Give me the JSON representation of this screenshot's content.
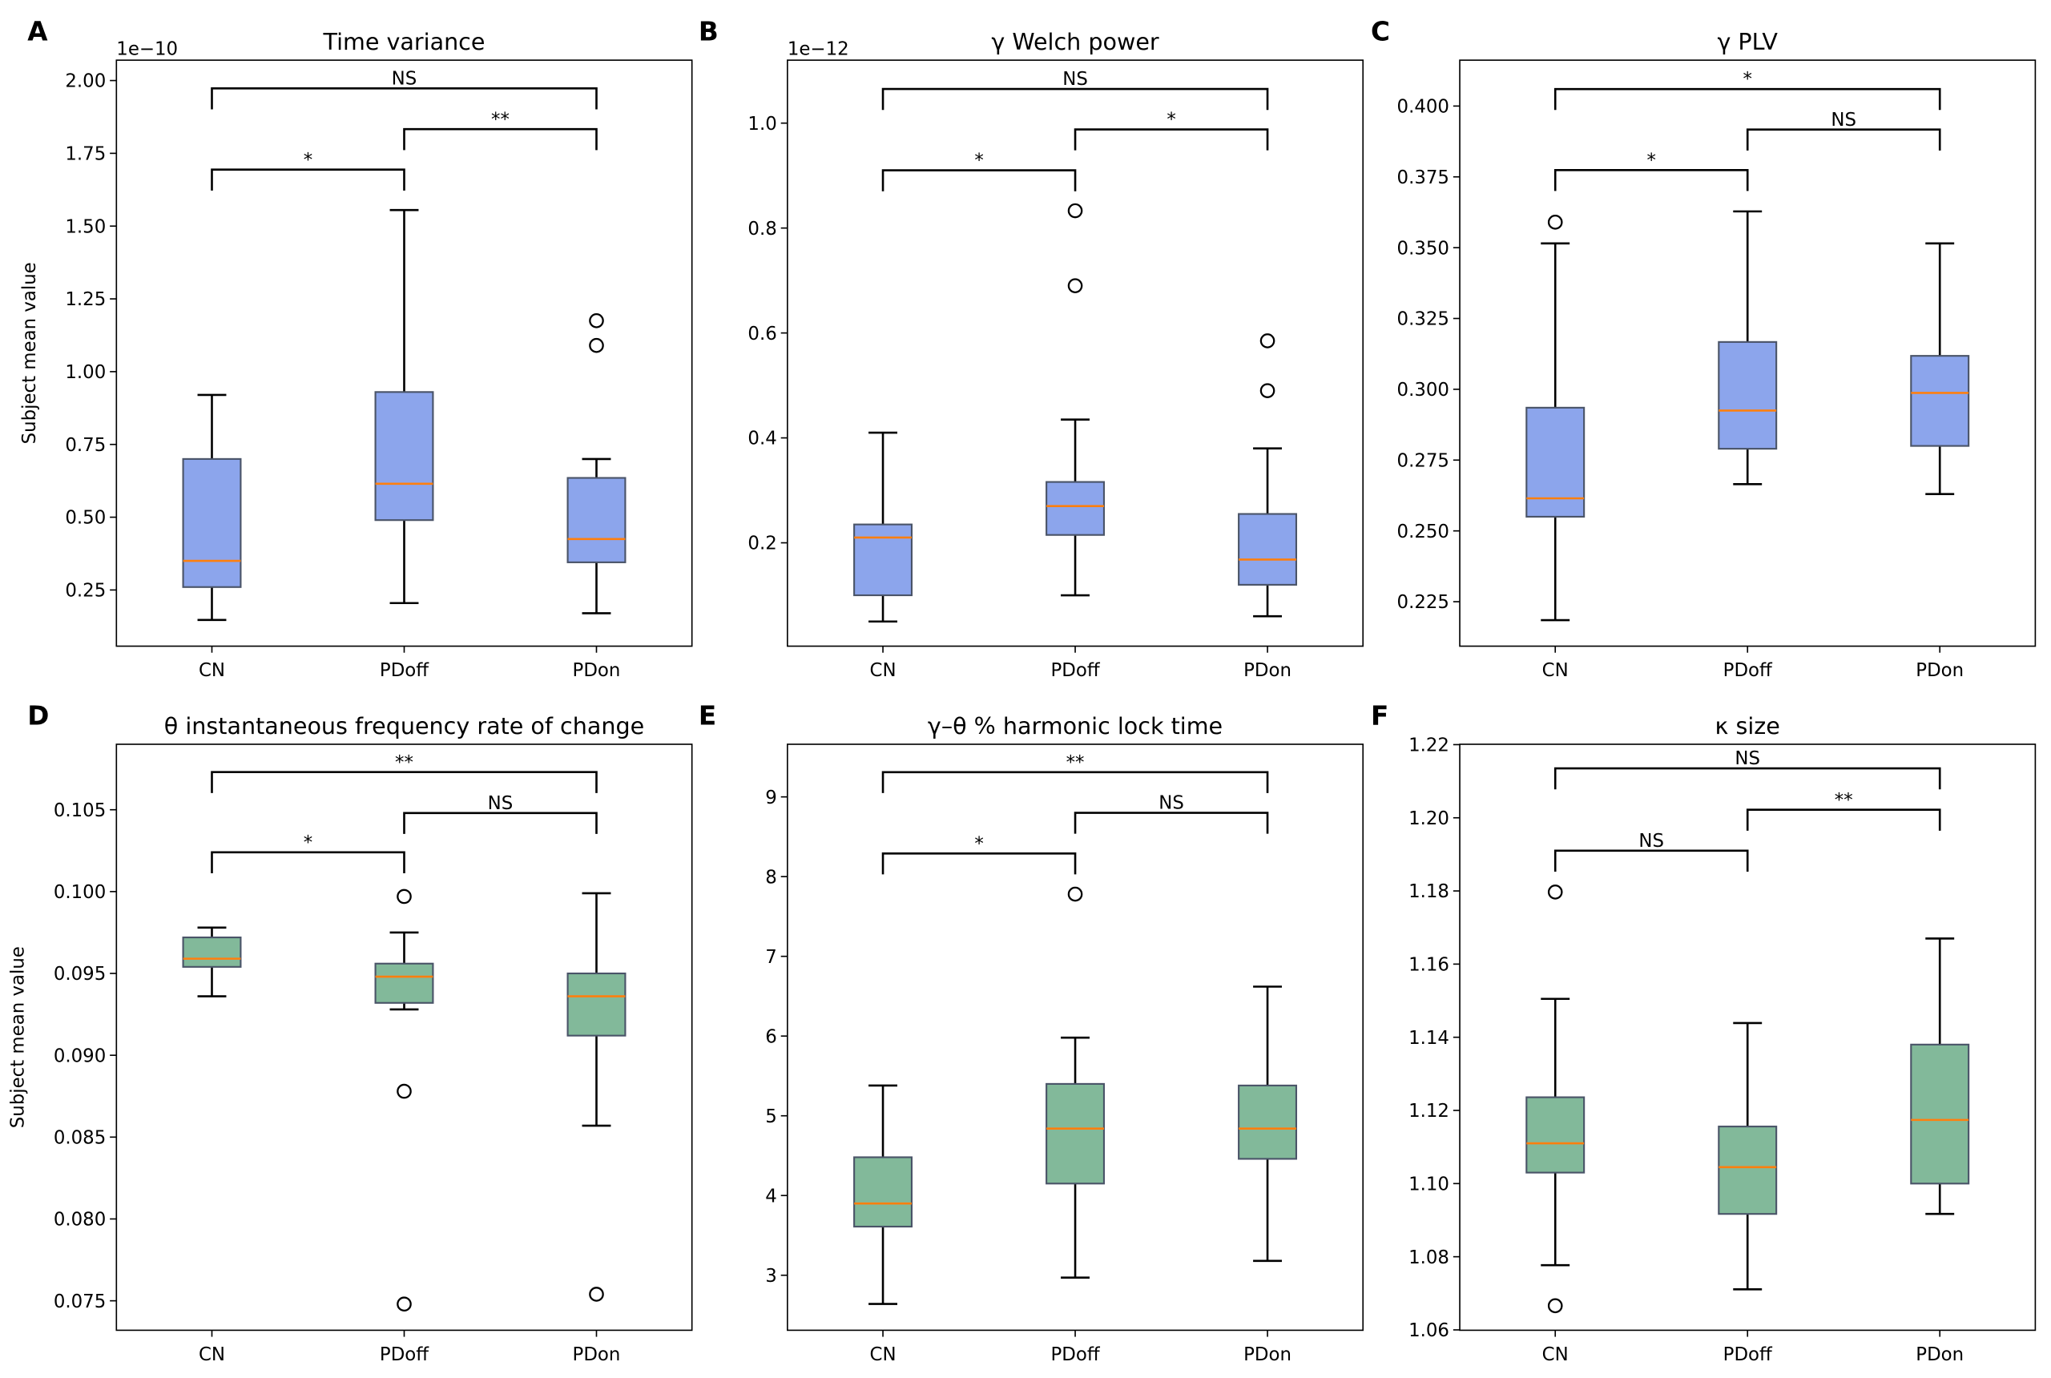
{
  "colors": {
    "group1_box": "#8ca5ec",
    "group2_box": "#82b99a",
    "median": "#ff7f0e",
    "box_edge": "#4a5468",
    "whisker": "#000000"
  },
  "chart_data": [
    {
      "panel": "A",
      "type": "box",
      "title": "Time variance",
      "ylabel": "Subject mean value",
      "offset_text": "1e−10",
      "categories": [
        "CN",
        "PDoff",
        "PDon"
      ],
      "ylim": [
        0.057,
        2.07
      ],
      "yticks": [
        0.25,
        0.5,
        0.75,
        1.0,
        1.25,
        1.5,
        1.75,
        2.0
      ],
      "ytick_labels": [
        "0.25",
        "0.50",
        "0.75",
        "1.00",
        "1.25",
        "1.50",
        "1.75",
        "2.00"
      ],
      "boxes": [
        {
          "whislo": 0.147,
          "q1": 0.26,
          "med": 0.35,
          "q3": 0.7,
          "whishi": 0.92,
          "fliers": []
        },
        {
          "whislo": 0.205,
          "q1": 0.49,
          "med": 0.615,
          "q3": 0.93,
          "whishi": 1.555,
          "fliers": []
        },
        {
          "whislo": 0.17,
          "q1": 0.345,
          "med": 0.425,
          "q3": 0.635,
          "whishi": 0.7,
          "fliers": [
            1.09,
            1.175
          ]
        }
      ],
      "brackets": [
        {
          "from": "CN",
          "to": "PDoff",
          "level": 1.694,
          "label": "*"
        },
        {
          "from": "PDoff",
          "to": "PDon",
          "level": 1.833,
          "label": "**"
        },
        {
          "from": "CN",
          "to": "PDon",
          "level": 1.973,
          "label": "NS"
        }
      ]
    },
    {
      "panel": "B",
      "type": "box",
      "title": "γ Welch power",
      "ylabel": "",
      "offset_text": "1e−12",
      "categories": [
        "CN",
        "PDoff",
        "PDon"
      ],
      "ylim": [
        0.003,
        1.12
      ],
      "yticks": [
        0.2,
        0.4,
        0.6,
        0.8,
        1.0
      ],
      "ytick_labels": [
        "0.2",
        "0.4",
        "0.6",
        "0.8",
        "1.0"
      ],
      "boxes": [
        {
          "whislo": 0.05,
          "q1": 0.1,
          "med": 0.21,
          "q3": 0.235,
          "whishi": 0.41,
          "fliers": []
        },
        {
          "whislo": 0.1,
          "q1": 0.215,
          "med": 0.27,
          "q3": 0.316,
          "whishi": 0.435,
          "fliers": [
            0.69,
            0.833
          ]
        },
        {
          "whislo": 0.06,
          "q1": 0.12,
          "med": 0.168,
          "q3": 0.255,
          "whishi": 0.38,
          "fliers": [
            0.49,
            0.585
          ]
        }
      ],
      "brackets": [
        {
          "from": "CN",
          "to": "PDoff",
          "level": 0.91,
          "label": "*"
        },
        {
          "from": "PDoff",
          "to": "PDon",
          "level": 0.988,
          "label": "*"
        },
        {
          "from": "CN",
          "to": "PDon",
          "level": 1.065,
          "label": "NS"
        }
      ]
    },
    {
      "panel": "C",
      "type": "box",
      "title": "γ PLV",
      "ylabel": "",
      "offset_text": "",
      "categories": [
        "CN",
        "PDoff",
        "PDon"
      ],
      "ylim": [
        0.2093,
        0.4162
      ],
      "yticks": [
        0.225,
        0.25,
        0.275,
        0.3,
        0.325,
        0.35,
        0.375,
        0.4
      ],
      "ytick_labels": [
        "0.225",
        "0.250",
        "0.275",
        "0.300",
        "0.325",
        "0.350",
        "0.375",
        "0.400"
      ],
      "boxes": [
        {
          "whislo": 0.2185,
          "q1": 0.255,
          "med": 0.2615,
          "q3": 0.2935,
          "whishi": 0.3515,
          "fliers": [
            0.359
          ]
        },
        {
          "whislo": 0.2665,
          "q1": 0.279,
          "med": 0.2925,
          "q3": 0.3167,
          "whishi": 0.3628,
          "fliers": []
        },
        {
          "whislo": 0.263,
          "q1": 0.28,
          "med": 0.2987,
          "q3": 0.3118,
          "whishi": 0.3515,
          "fliers": []
        }
      ],
      "brackets": [
        {
          "from": "CN",
          "to": "PDoff",
          "level": 0.3774,
          "label": "*"
        },
        {
          "from": "PDoff",
          "to": "PDon",
          "level": 0.3917,
          "label": "NS"
        },
        {
          "from": "CN",
          "to": "PDon",
          "level": 0.406,
          "label": "*"
        }
      ]
    },
    {
      "panel": "D",
      "type": "box",
      "title": "θ instantaneous frequency rate of change",
      "ylabel": "Subject mean value",
      "offset_text": "",
      "categories": [
        "CN",
        "PDoff",
        "PDon"
      ],
      "ylim": [
        0.0732,
        0.109
      ],
      "yticks": [
        0.075,
        0.08,
        0.085,
        0.09,
        0.095,
        0.1,
        0.105
      ],
      "ytick_labels": [
        "0.075",
        "0.080",
        "0.085",
        "0.090",
        "0.095",
        "0.100",
        "0.105"
      ],
      "boxes": [
        {
          "whislo": 0.0936,
          "q1": 0.0954,
          "med": 0.0959,
          "q3": 0.0972,
          "whishi": 0.0978,
          "fliers": []
        },
        {
          "whislo": 0.0928,
          "q1": 0.0932,
          "med": 0.0948,
          "q3": 0.0956,
          "whishi": 0.0975,
          "fliers": [
            0.0748,
            0.0878,
            0.0997
          ]
        },
        {
          "whislo": 0.0857,
          "q1": 0.0912,
          "med": 0.0936,
          "q3": 0.095,
          "whishi": 0.0999,
          "fliers": [
            0.0754
          ]
        }
      ],
      "brackets": [
        {
          "from": "CN",
          "to": "PDoff",
          "level": 0.1024,
          "label": "*"
        },
        {
          "from": "PDoff",
          "to": "PDon",
          "level": 0.1048,
          "label": "NS"
        },
        {
          "from": "CN",
          "to": "PDon",
          "level": 0.1073,
          "label": "**"
        }
      ]
    },
    {
      "panel": "E",
      "type": "box",
      "title": "γ–θ % harmonic lock time",
      "ylabel": "",
      "offset_text": "",
      "categories": [
        "CN",
        "PDoff",
        "PDon"
      ],
      "ylim": [
        2.31,
        9.66
      ],
      "yticks": [
        3,
        4,
        5,
        6,
        7,
        8,
        9
      ],
      "ytick_labels": [
        "3",
        "4",
        "5",
        "6",
        "7",
        "8",
        "9"
      ],
      "boxes": [
        {
          "whislo": 2.64,
          "q1": 3.61,
          "med": 3.9,
          "q3": 4.48,
          "whishi": 5.38,
          "fliers": []
        },
        {
          "whislo": 2.97,
          "q1": 4.15,
          "med": 4.84,
          "q3": 5.4,
          "whishi": 5.98,
          "fliers": [
            7.78
          ]
        },
        {
          "whislo": 3.18,
          "q1": 4.46,
          "med": 4.84,
          "q3": 5.38,
          "whishi": 6.62,
          "fliers": []
        }
      ],
      "brackets": [
        {
          "from": "CN",
          "to": "PDoff",
          "level": 8.29,
          "label": "*"
        },
        {
          "from": "PDoff",
          "to": "PDon",
          "level": 8.8,
          "label": "NS"
        },
        {
          "from": "CN",
          "to": "PDon",
          "level": 9.31,
          "label": "**"
        }
      ]
    },
    {
      "panel": "F",
      "type": "box",
      "title": "κ size",
      "ylabel": "",
      "offset_text": "",
      "categories": [
        "CN",
        "PDoff",
        "PDon"
      ],
      "ylim": [
        1.0599,
        1.2201
      ],
      "yticks": [
        1.06,
        1.08,
        1.1,
        1.12,
        1.14,
        1.16,
        1.18,
        1.2,
        1.22
      ],
      "ytick_labels": [
        "1.06",
        "1.08",
        "1.10",
        "1.12",
        "1.14",
        "1.16",
        "1.18",
        "1.20",
        "1.22"
      ],
      "boxes": [
        {
          "whislo": 1.0777,
          "q1": 1.103,
          "med": 1.111,
          "q3": 1.1236,
          "whishi": 1.1505,
          "fliers": [
            1.0666,
            1.1797
          ]
        },
        {
          "whislo": 1.0711,
          "q1": 1.0917,
          "med": 1.1045,
          "q3": 1.1156,
          "whishi": 1.1439,
          "fliers": []
        },
        {
          "whislo": 1.0917,
          "q1": 1.1,
          "med": 1.1174,
          "q3": 1.138,
          "whishi": 1.167,
          "fliers": []
        }
      ],
      "brackets": [
        {
          "from": "CN",
          "to": "PDoff",
          "level": 1.191,
          "label": "NS"
        },
        {
          "from": "PDoff",
          "to": "PDon",
          "level": 1.2022,
          "label": "**"
        },
        {
          "from": "CN",
          "to": "PDon",
          "level": 1.2135,
          "label": "NS"
        }
      ]
    }
  ]
}
